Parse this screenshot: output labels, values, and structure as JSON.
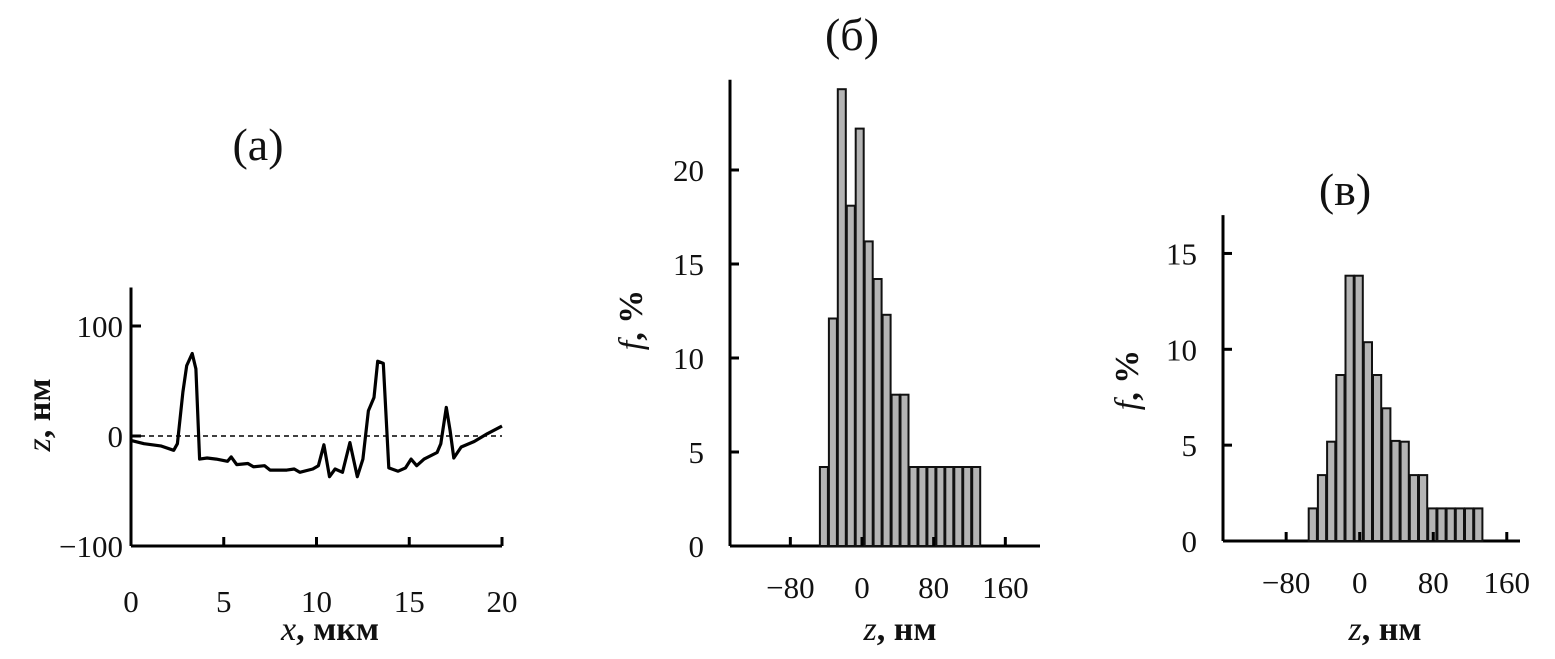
{
  "chart_data": [
    {
      "type": "line",
      "title": "(а)",
      "xlabel_var": "x",
      "xlabel_unit": ", мкм",
      "ylabel_var": "z",
      "ylabel_unit": ", нм",
      "xlim": [
        0,
        20
      ],
      "ylim": [
        -100,
        135
      ],
      "xticks": [
        "0",
        "5",
        "10",
        "15",
        "20"
      ],
      "xtick_values": [
        0,
        5,
        10,
        15,
        20
      ],
      "yticks": [
        "100",
        "0",
        "−100"
      ],
      "ytick_values": [
        100,
        0,
        -100
      ],
      "reference_line": {
        "y": 0,
        "style": "dashed"
      },
      "x": [
        0,
        0.7,
        1.6,
        2.3,
        2.5,
        2.8,
        3.0,
        3.3,
        3.5,
        3.7,
        4.1,
        4.6,
        5.2,
        5.4,
        5.7,
        6.3,
        6.6,
        7.2,
        7.5,
        8.4,
        8.8,
        9.1,
        9.8,
        10.1,
        10.4,
        10.7,
        11.0,
        11.4,
        11.8,
        12.2,
        12.5,
        12.8,
        13.1,
        13.3,
        13.6,
        13.9,
        14.4,
        14.8,
        15.1,
        15.4,
        15.8,
        16.5,
        16.7,
        17.0,
        17.2,
        17.4,
        17.8,
        18.5,
        19.2,
        20
      ],
      "y": [
        -4,
        -7,
        -9,
        -13,
        -7,
        40,
        64,
        75,
        61,
        -21,
        -20,
        -21,
        -23,
        -19,
        -26,
        -25,
        -28,
        -27,
        -31,
        -31,
        -30,
        -33,
        -30,
        -27,
        -8,
        -37,
        -30,
        -33,
        -6,
        -37,
        -21,
        23,
        35,
        68,
        66,
        -29,
        -32,
        -29,
        -21,
        -27,
        -21,
        -15,
        -7,
        26,
        5,
        -20,
        -10,
        -5,
        2,
        9
      ]
    },
    {
      "type": "bar",
      "title": "(б)",
      "xlabel_var": "z",
      "xlabel_unit": ", нм",
      "ylabel_var": "f",
      "ylabel_unit": ", %",
      "xlim": [
        -105,
        200
      ],
      "ylim": [
        0,
        24.8
      ],
      "xticks": [
        "−80",
        "0",
        "80",
        "160"
      ],
      "xtick_values": [
        -80,
        0,
        80,
        160
      ],
      "yticks": [
        "0",
        "5",
        "10",
        "15",
        "20"
      ],
      "ytick_values": [
        0,
        5,
        10,
        15,
        20
      ],
      "bin_start": -47,
      "bin_width": 10,
      "values": [
        4.2,
        12.1,
        24.3,
        18.1,
        22.2,
        16.2,
        14.2,
        12.3,
        8.05,
        8.05,
        4.2,
        4.2,
        4.2,
        4.2,
        4.2,
        4.2,
        4.2,
        4.2
      ]
    },
    {
      "type": "bar",
      "title": "(в)",
      "xlabel_var": "z",
      "xlabel_unit": ", нм",
      "ylabel_var": "f",
      "ylabel_unit": ", %",
      "xlim": [
        -107,
        198
      ],
      "ylim": [
        0,
        17
      ],
      "xticks": [
        "−80",
        "0",
        "80",
        "160"
      ],
      "xtick_values": [
        -80,
        0,
        80,
        160
      ],
      "yticks": [
        "0",
        "5",
        "10",
        "15"
      ],
      "ytick_values": [
        0,
        5,
        10,
        15
      ],
      "bin_start": -55.5,
      "bin_width": 10,
      "values": [
        1.7,
        3.44,
        5.18,
        8.66,
        13.84,
        13.84,
        10.37,
        8.66,
        6.92,
        5.22,
        5.18,
        3.44,
        3.44,
        1.7,
        1.7,
        1.7,
        1.7,
        1.7,
        1.7
      ]
    }
  ]
}
